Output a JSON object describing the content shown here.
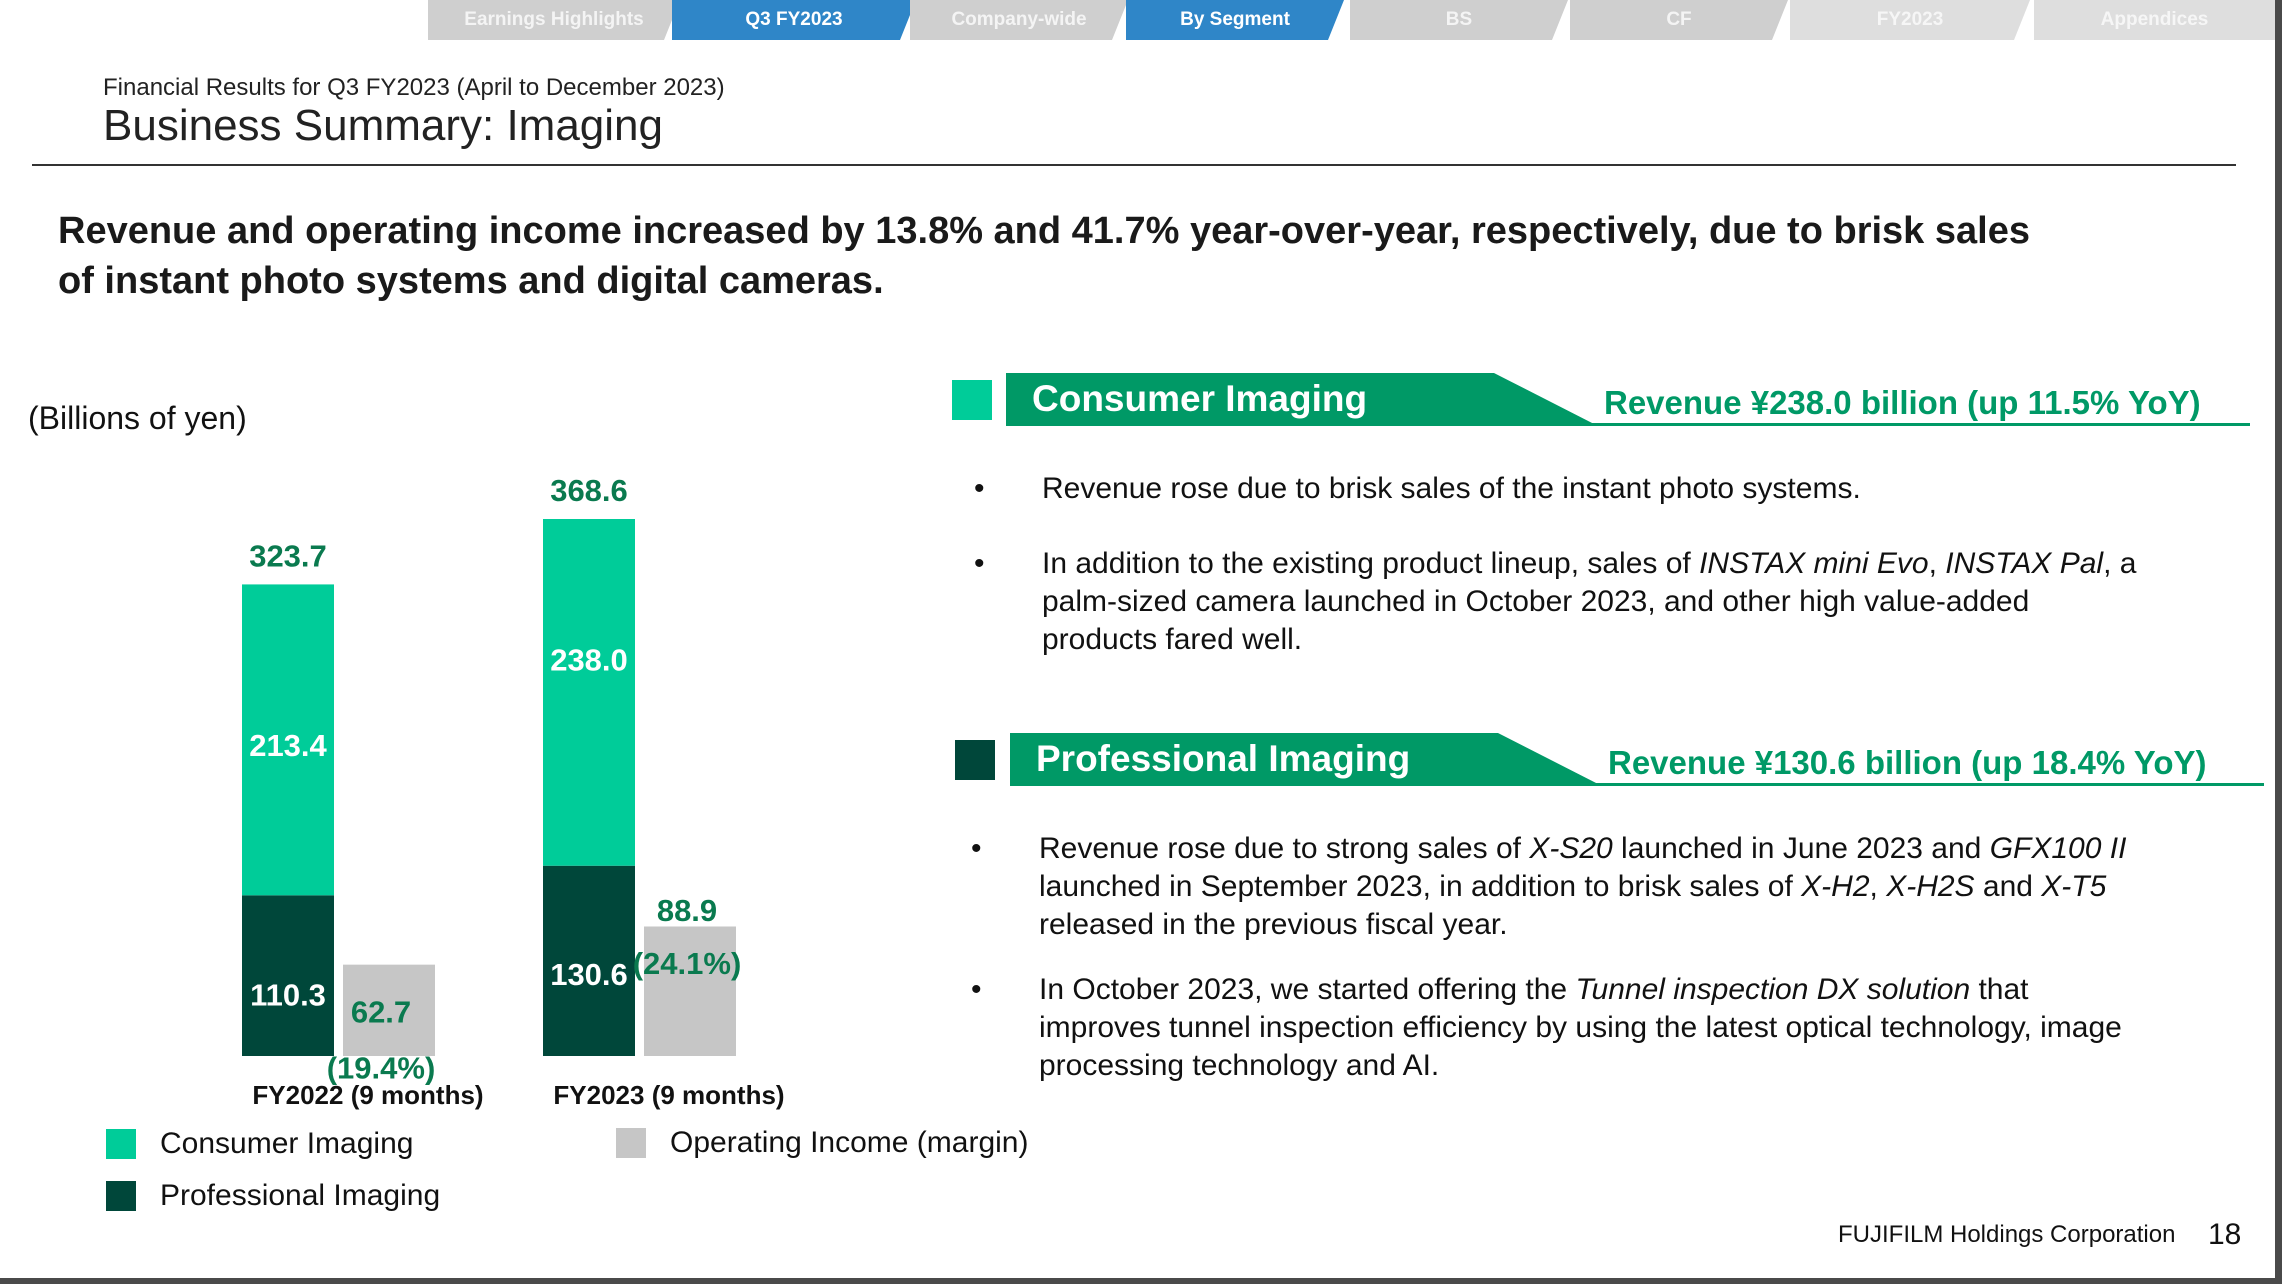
{
  "nav": {
    "tabs": [
      {
        "label": "Earnings Highlights"
      },
      {
        "label": "Q3 FY2023"
      },
      {
        "label": "Company-wide"
      },
      {
        "label": "By Segment"
      },
      {
        "label": "BS"
      },
      {
        "label": "CF"
      },
      {
        "label": "FY2023"
      },
      {
        "label": "Appendices"
      }
    ]
  },
  "header": {
    "subtitle": "Financial Results for Q3 FY2023 (April to December 2023)",
    "title": "Business Summary: Imaging"
  },
  "headline": {
    "line1": "Revenue and operating income increased by 13.8% and 41.7% year-over-year, respectively, due to brisk sales",
    "line2": "of instant photo systems and digital cameras."
  },
  "chart_data": {
    "type": "bar",
    "units_label": "(Billions of yen)",
    "categories": [
      "FY2022 (9 months)",
      "FY2023 (9 months)"
    ],
    "series": [
      {
        "name": "Professional Imaging",
        "values": [
          110.3,
          130.6
        ],
        "color": "#00473a",
        "stack": "revenue"
      },
      {
        "name": "Consumer Imaging",
        "values": [
          213.4,
          238.0
        ],
        "color": "#00cc99",
        "stack": "revenue"
      },
      {
        "name": "Operating Income (margin)",
        "values": [
          62.7,
          88.9
        ],
        "color": "#c6c6c6",
        "stack": "income"
      }
    ],
    "totals": [
      "323.7",
      "368.6"
    ],
    "value_labels": {
      "professional": [
        "110.3",
        "130.6"
      ],
      "consumer": [
        "213.4",
        "238.0"
      ],
      "income": [
        "62.7",
        "88.9"
      ],
      "margin": [
        "(19.4%)",
        "(24.1%)"
      ]
    },
    "ylim": [
      0,
      368.6
    ],
    "grid": false,
    "legend": [
      {
        "name": "Consumer Imaging",
        "color": "#00cc99"
      },
      {
        "name": "Professional Imaging",
        "color": "#00473a"
      },
      {
        "name": "Operating Income (margin)",
        "color": "#c6c6c6"
      }
    ],
    "legend_position": "bottom"
  },
  "segments": {
    "consumer": {
      "title": "Consumer Imaging",
      "revenue": "Revenue ¥238.0 billion (up 11.5% YoY)",
      "color": "#009966",
      "bullets": {
        "b1": "Revenue rose due to brisk sales of the instant photo systems.",
        "b2_pre": "In addition to the existing product lineup, sales of ",
        "b2_em1": "INSTAX mini Evo",
        "b2_mid": ", ",
        "b2_em2": "INSTAX Pal",
        "b2_post": ", a",
        "b2_line2": "palm-sized camera launched in October 2023, and other high value-added",
        "b2_line3": "products fared well."
      }
    },
    "professional": {
      "title": "Professional Imaging",
      "revenue": "Revenue ¥130.6 billion (up 18.4% YoY)",
      "color": "#009966",
      "bullets": {
        "b1_pre": "Revenue rose due to strong sales of ",
        "b1_em1": "X-S20",
        "b1_mid": " launched in June 2023 and ",
        "b1_em2": "GFX100 II",
        "b1_line2_pre": "launched in September 2023, in addition to brisk sales of ",
        "b1_em3": "X-H2",
        "b1_c1": ", ",
        "b1_em4": "X-H2S",
        "b1_and": " and ",
        "b1_em5": "X-T5",
        "b1_line3": "released in the previous fiscal year.",
        "b2_pre": "In October 2023, we started offering the ",
        "b2_em": "Tunnel inspection DX solution",
        "b2_post": " that",
        "b2_line2": "improves tunnel inspection efficiency by using the latest optical technology, image",
        "b2_line3": "processing technology and AI."
      }
    }
  },
  "bullet_char": "•",
  "footer": {
    "company": "FUJIFILM Holdings Corporation",
    "page": "18"
  }
}
